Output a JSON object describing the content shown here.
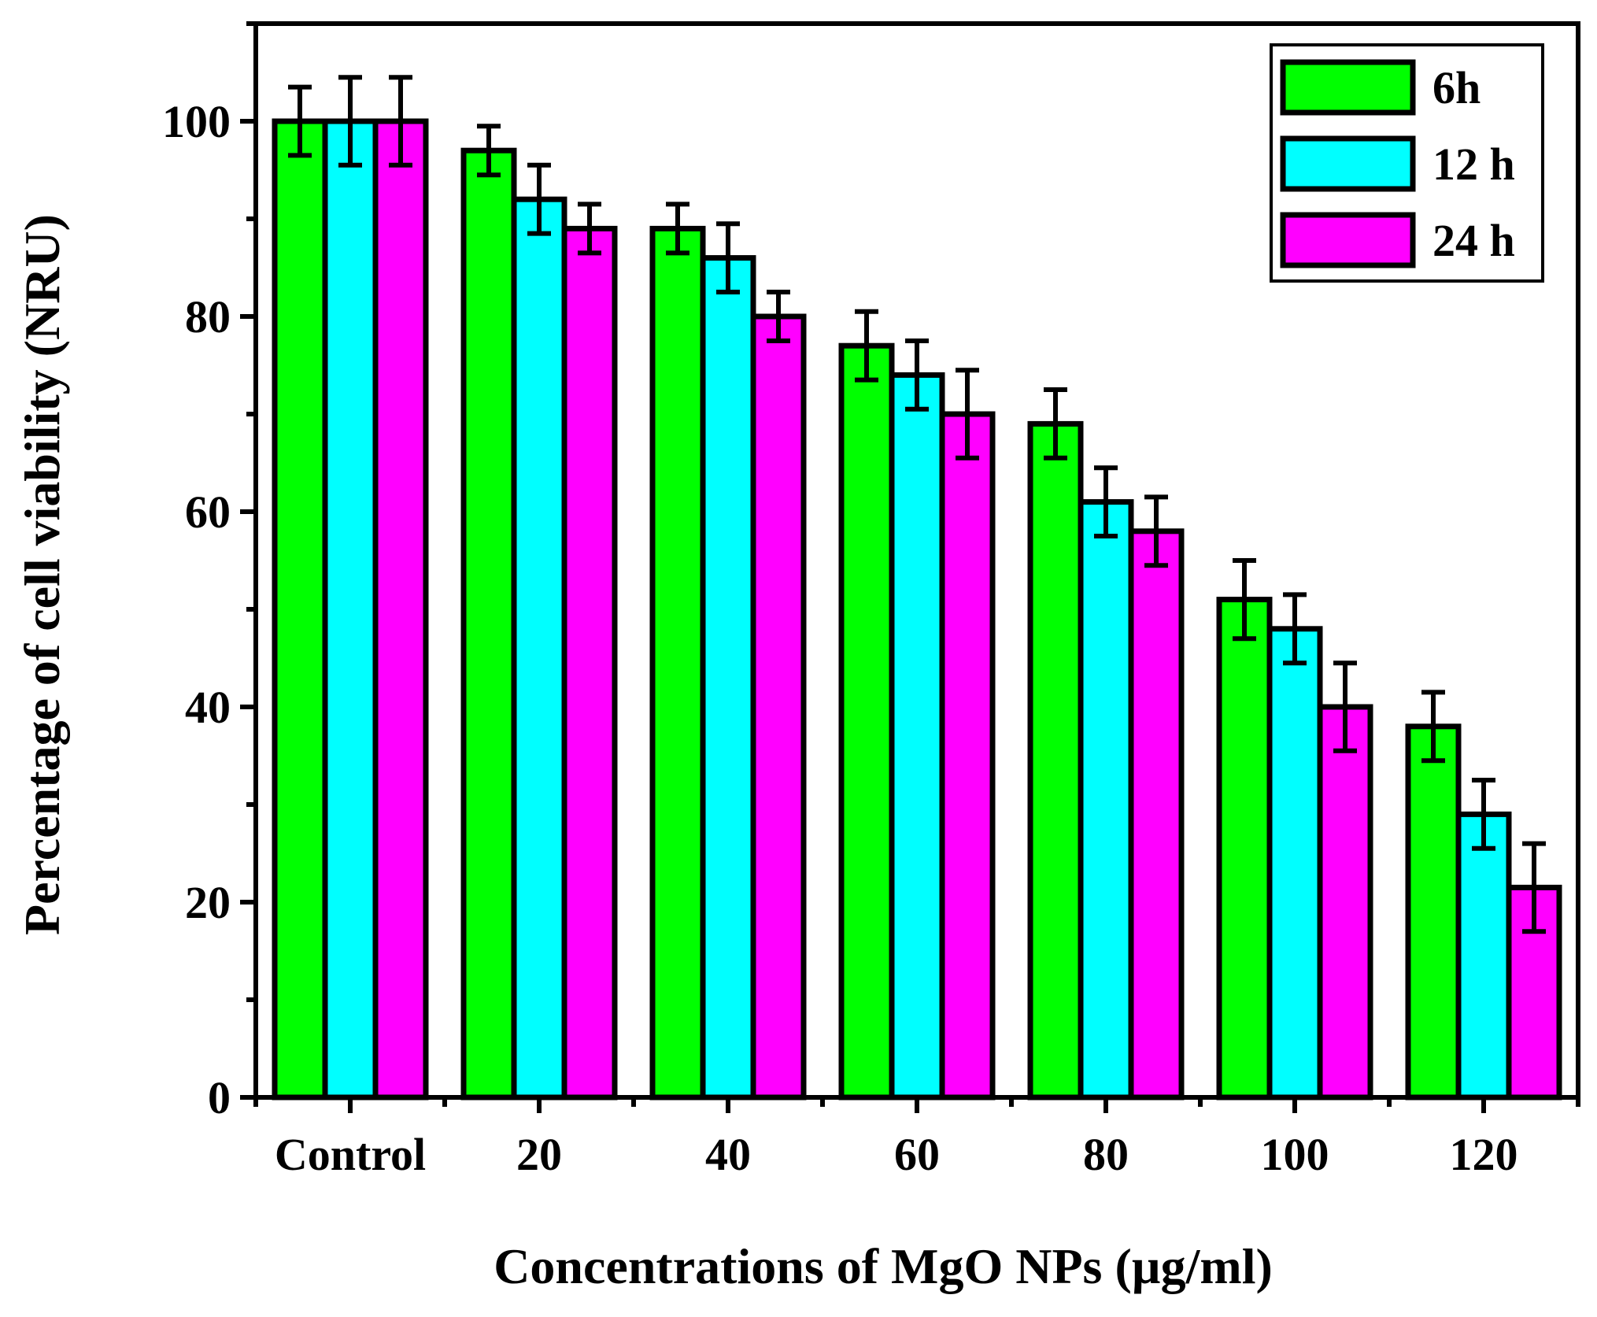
{
  "chart_data": {
    "type": "bar",
    "title": "",
    "xlabel": "Concentrations  of MgO NPs (µg/ml)",
    "ylabel": "Percentage of cell viability (NRU)",
    "categories": [
      "Control",
      "20",
      "40",
      "60",
      "80",
      "100",
      "120"
    ],
    "series": [
      {
        "name": "6h",
        "color": "#00ff00",
        "values": [
          100,
          97,
          89,
          77,
          69,
          51,
          38
        ],
        "errors": [
          3.5,
          2.5,
          2.5,
          3.5,
          3.5,
          4,
          3.5
        ]
      },
      {
        "name": "12 h",
        "color": "#00ffff",
        "values": [
          100,
          92,
          86,
          74,
          61,
          48,
          29
        ],
        "errors": [
          4.5,
          3.5,
          3.5,
          3.5,
          3.5,
          3.5,
          3.5
        ]
      },
      {
        "name": "24 h",
        "color": "#ff00ff",
        "values": [
          100,
          89,
          80,
          70,
          58,
          40,
          21.5
        ],
        "errors": [
          4.5,
          2.5,
          2.5,
          4.5,
          3.5,
          4.5,
          4.5
        ]
      }
    ],
    "ylim": [
      0,
      110
    ],
    "yticks": [
      0,
      20,
      40,
      60,
      80,
      100
    ],
    "grid": false,
    "legend": "top-right"
  }
}
